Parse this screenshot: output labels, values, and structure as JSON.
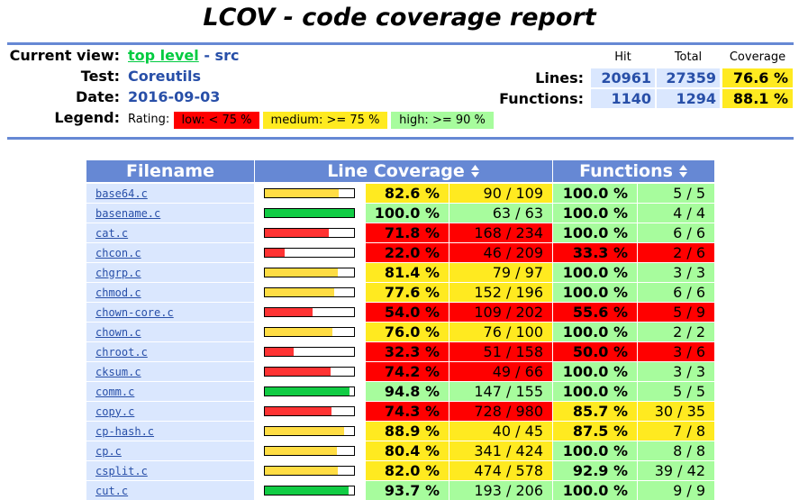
{
  "title": "LCOV - code coverage report",
  "header": {
    "current_view_label": "Current view:",
    "current_view_link": "top level",
    "current_view_rest": "- src",
    "test_label": "Test:",
    "test": "Coreutils",
    "date_label": "Date:",
    "date": "2016-09-03",
    "legend_label": "Legend:",
    "rating_label": "Rating:",
    "legend": [
      {
        "rating": "low",
        "label": "low: < 75 %"
      },
      {
        "rating": "medium",
        "label": "medium: >= 75 %"
      },
      {
        "rating": "high",
        "label": "high: >= 90 %"
      }
    ],
    "summary_headers": [
      "Hit",
      "Total",
      "Coverage"
    ],
    "summary": [
      {
        "label": "Lines:",
        "hit": "20961",
        "total": "27359",
        "coverage": "76.6 %",
        "rating": "medium"
      },
      {
        "label": "Functions:",
        "hit": "1140",
        "total": "1294",
        "coverage": "88.1 %",
        "rating": "medium"
      }
    ]
  },
  "table": {
    "headers": [
      "Filename",
      "Line Coverage",
      "Functions"
    ],
    "rows": [
      {
        "file": "base64.c",
        "line_pct": "82.6 %",
        "lines": "90 / 109",
        "line_rating": "medium",
        "fn_pct": "100.0 %",
        "fns": "5 / 5",
        "fn_rating": "high"
      },
      {
        "file": "basename.c",
        "line_pct": "100.0 %",
        "lines": "63 / 63",
        "line_rating": "high",
        "fn_pct": "100.0 %",
        "fns": "4 / 4",
        "fn_rating": "high"
      },
      {
        "file": "cat.c",
        "line_pct": "71.8 %",
        "lines": "168 / 234",
        "line_rating": "low",
        "fn_pct": "100.0 %",
        "fns": "6 / 6",
        "fn_rating": "high"
      },
      {
        "file": "chcon.c",
        "line_pct": "22.0 %",
        "lines": "46 / 209",
        "line_rating": "low",
        "fn_pct": "33.3 %",
        "fns": "2 / 6",
        "fn_rating": "low"
      },
      {
        "file": "chgrp.c",
        "line_pct": "81.4 %",
        "lines": "79 / 97",
        "line_rating": "medium",
        "fn_pct": "100.0 %",
        "fns": "3 / 3",
        "fn_rating": "high"
      },
      {
        "file": "chmod.c",
        "line_pct": "77.6 %",
        "lines": "152 / 196",
        "line_rating": "medium",
        "fn_pct": "100.0 %",
        "fns": "6 / 6",
        "fn_rating": "high"
      },
      {
        "file": "chown-core.c",
        "line_pct": "54.0 %",
        "lines": "109 / 202",
        "line_rating": "low",
        "fn_pct": "55.6 %",
        "fns": "5 / 9",
        "fn_rating": "low"
      },
      {
        "file": "chown.c",
        "line_pct": "76.0 %",
        "lines": "76 / 100",
        "line_rating": "medium",
        "fn_pct": "100.0 %",
        "fns": "2 / 2",
        "fn_rating": "high"
      },
      {
        "file": "chroot.c",
        "line_pct": "32.3 %",
        "lines": "51 / 158",
        "line_rating": "low",
        "fn_pct": "50.0 %",
        "fns": "3 / 6",
        "fn_rating": "low"
      },
      {
        "file": "cksum.c",
        "line_pct": "74.2 %",
        "lines": "49 / 66",
        "line_rating": "low",
        "fn_pct": "100.0 %",
        "fns": "3 / 3",
        "fn_rating": "high"
      },
      {
        "file": "comm.c",
        "line_pct": "94.8 %",
        "lines": "147 / 155",
        "line_rating": "high",
        "fn_pct": "100.0 %",
        "fns": "5 / 5",
        "fn_rating": "high"
      },
      {
        "file": "copy.c",
        "line_pct": "74.3 %",
        "lines": "728 / 980",
        "line_rating": "low",
        "fn_pct": "85.7 %",
        "fns": "30 / 35",
        "fn_rating": "medium"
      },
      {
        "file": "cp-hash.c",
        "line_pct": "88.9 %",
        "lines": "40 / 45",
        "line_rating": "medium",
        "fn_pct": "87.5 %",
        "fns": "7 / 8",
        "fn_rating": "medium"
      },
      {
        "file": "cp.c",
        "line_pct": "80.4 %",
        "lines": "341 / 424",
        "line_rating": "medium",
        "fn_pct": "100.0 %",
        "fns": "8 / 8",
        "fn_rating": "high"
      },
      {
        "file": "csplit.c",
        "line_pct": "82.0 %",
        "lines": "474 / 578",
        "line_rating": "medium",
        "fn_pct": "92.9 %",
        "fns": "39 / 42",
        "fn_rating": "high"
      },
      {
        "file": "cut.c",
        "line_pct": "93.7 %",
        "lines": "193 / 206",
        "line_rating": "high",
        "fn_pct": "100.0 %",
        "fns": "9 / 9",
        "fn_rating": "high"
      }
    ]
  }
}
